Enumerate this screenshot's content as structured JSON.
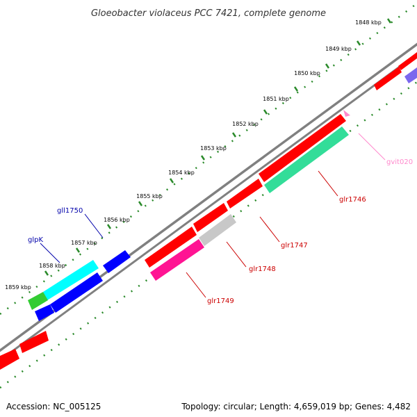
{
  "title": "Gloeobacter violaceus PCC 7421, complete genome",
  "accession": "Accession: NC_005125",
  "topology": "Topology: circular; Length: 4,659,019 bp; Genes: 4,482",
  "colors": {
    "backbone": "#808080",
    "tick": "#2a8a2a",
    "forward_gene": "#ff0000",
    "reverse_gene": "#ff0000",
    "label_forward": "#0000aa",
    "label_reverse": "#cc0000",
    "label_rna": "#ff88cc"
  },
  "ticks": [
    {
      "kbp": 1848,
      "label": "1848 kbp"
    },
    {
      "kbp": 1849,
      "label": "1849 kbp"
    },
    {
      "kbp": 1850,
      "label": "1850 kbp"
    },
    {
      "kbp": 1851,
      "label": "1851 kbp"
    },
    {
      "kbp": 1852,
      "label": "1852 kbp"
    },
    {
      "kbp": 1853,
      "label": "1853 kbp"
    },
    {
      "kbp": 1854,
      "label": "1854 kbp"
    },
    {
      "kbp": 1855,
      "label": "1855 kbp"
    },
    {
      "kbp": 1856,
      "label": "1856 kbp"
    },
    {
      "kbp": 1857,
      "label": "1857 kbp"
    },
    {
      "kbp": 1858,
      "label": "1858 kbp"
    },
    {
      "kbp": 1859,
      "label": "1859 kbp"
    }
  ],
  "features": [
    {
      "name": "gll1750",
      "color": "#0000ff",
      "label_color": "#0000aa"
    },
    {
      "name": "glpK",
      "color": "#00ffff",
      "label_color": "#0000aa"
    },
    {
      "name": "glr1746",
      "color": "#33dd99",
      "label_color": "#cc0000"
    },
    {
      "name": "glr1747",
      "color": "#ff0000",
      "label_color": "#cc0000"
    },
    {
      "name": "glr1748",
      "color": "#c8c8c8",
      "label_color": "#cc0000"
    },
    {
      "name": "glr1749",
      "color": "#ff1493",
      "label_color": "#cc0000"
    },
    {
      "name": "gvit020",
      "color": "#ff88cc",
      "label_color": "#ff88cc"
    }
  ]
}
